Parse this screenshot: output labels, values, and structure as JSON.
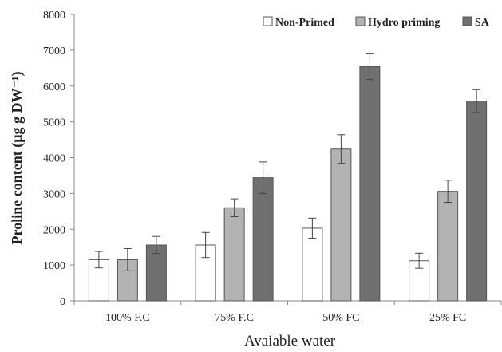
{
  "chart_data": {
    "type": "bar",
    "title": "",
    "xlabel": "Avaiable water",
    "ylabel": "Proline content (µg g DW⁻¹)",
    "categories": [
      "100% F.C",
      "75% F.C",
      "50% FC",
      "25% FC"
    ],
    "ylim": [
      0,
      8000
    ],
    "yticks": [
      0,
      1000,
      2000,
      3000,
      4000,
      5000,
      6000,
      7000,
      8000
    ],
    "ytick_labels": [
      "0",
      "1000",
      "2000",
      "3000",
      "4000",
      "5000",
      "6000",
      "7000",
      "8000"
    ],
    "grid": false,
    "legend_position": "top-right",
    "series": [
      {
        "name": "Non-Primed",
        "color": "#ffffff",
        "values": [
          1150,
          1560,
          2030,
          1120
        ],
        "errors": [
          230,
          350,
          280,
          210
        ]
      },
      {
        "name": "Hydro priming",
        "color": "#b3b3b3",
        "values": [
          1150,
          2600,
          4240,
          3060
        ],
        "errors": [
          310,
          250,
          400,
          310
        ]
      },
      {
        "name": "SA",
        "color": "#707070",
        "values": [
          1560,
          3440,
          6540,
          5580
        ],
        "errors": [
          240,
          440,
          360,
          320
        ]
      }
    ]
  }
}
